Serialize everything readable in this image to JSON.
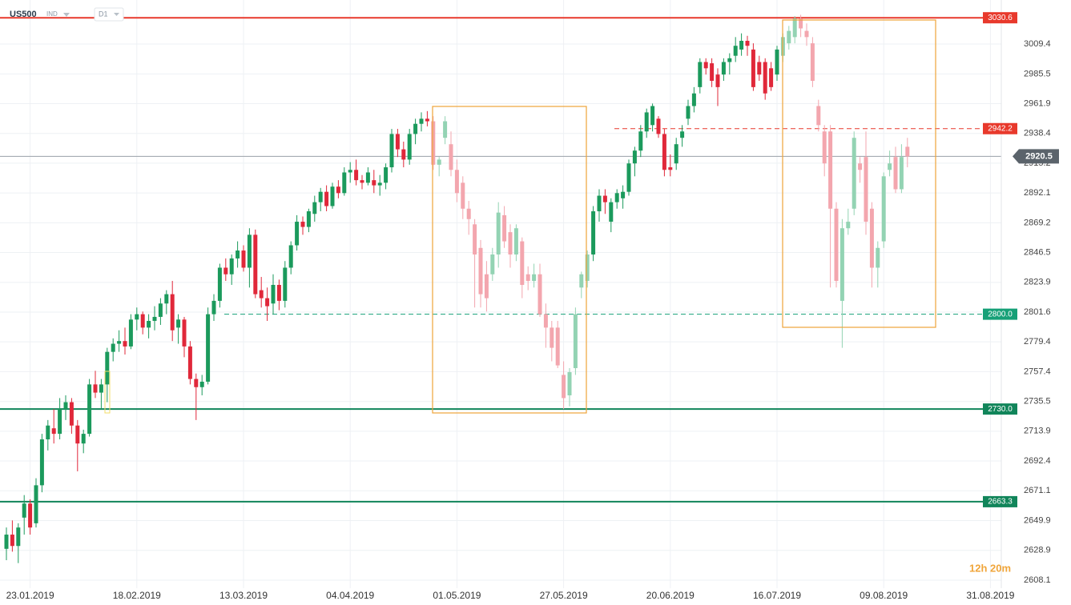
{
  "chart_data": {
    "type": "candlestick",
    "symbol": "US500",
    "market": "IND",
    "timeframe": "D1",
    "countdown": "12h 20m",
    "log_scale": true,
    "grid": true,
    "up_color": "#1b9a5c",
    "down_color": "#e0283a",
    "categories": [
      null,
      null,
      null,
      null,
      "23.01.2019",
      null,
      null,
      null,
      null,
      null,
      null,
      null,
      null,
      null,
      null,
      null,
      null,
      null,
      null,
      null,
      null,
      null,
      "18.02.2019",
      null,
      null,
      null,
      null,
      null,
      null,
      null,
      null,
      null,
      null,
      null,
      null,
      null,
      null,
      null,
      null,
      null,
      "13.03.2019",
      null,
      null,
      null,
      null,
      null,
      null,
      null,
      null,
      null,
      null,
      null,
      null,
      null,
      null,
      null,
      null,
      null,
      "04.04.2019",
      null,
      null,
      null,
      null,
      null,
      null,
      null,
      null,
      null,
      null,
      null,
      null,
      null,
      null,
      null,
      null,
      null,
      "01.05.2019",
      null,
      null,
      null,
      null,
      null,
      null,
      null,
      null,
      null,
      null,
      null,
      null,
      null,
      null,
      null,
      null,
      null,
      "27.05.2019",
      null,
      null,
      null,
      null,
      null,
      null,
      null,
      null,
      null,
      null,
      null,
      null,
      null,
      null,
      null,
      null,
      null,
      "20.06.2019",
      null,
      null,
      null,
      null,
      null,
      null,
      null,
      null,
      null,
      null,
      null,
      null,
      null,
      null,
      null,
      null,
      null,
      "16.07.2019",
      null,
      null,
      null,
      null,
      null,
      null,
      null,
      null,
      null,
      null,
      null,
      null,
      null,
      null,
      null,
      null,
      null,
      "09.08.2019",
      null,
      null,
      null,
      null,
      null,
      null,
      null,
      null,
      null,
      null,
      null,
      null,
      null,
      null,
      null,
      null,
      null,
      "31.08.2019",
      null,
      null
    ],
    "open": [
      2630,
      2640,
      2632,
      2652,
      2662,
      2648,
      2675,
      2708,
      2716,
      2712,
      2730,
      2735,
      2718,
      2705,
      2712,
      2748,
      2742,
      2748,
      2772,
      2778,
      2780,
      2776,
      2796,
      2800,
      2790,
      2795,
      2798,
      2808,
      2815,
      2790,
      2796,
      2776,
      2752,
      2746,
      2750,
      2800,
      2810,
      2835,
      2830,
      2842,
      2848,
      2835,
      2860,
      2818,
      2812,
      2808,
      2822,
      2810,
      2835,
      2852,
      2870,
      2866,
      2876,
      2885,
      2893,
      2882,
      2897,
      2892,
      2908,
      2910,
      2902,
      2900,
      2902,
      2898,
      2900,
      2912,
      2938,
      2926,
      2918,
      2938,
      2946,
      2950,
      2948,
      2914,
      2935,
      2930,
      2910,
      2900,
      2880,
      2868,
      2850,
      2830,
      2830,
      2845,
      2875,
      2862,
      2845,
      2855,
      2830,
      2825,
      2830,
      2800,
      2790,
      2790,
      2755,
      2740,
      2760,
      2820,
      2825,
      2845,
      2878,
      2890,
      2870,
      2885,
      2888,
      2893,
      2915,
      2925,
      2940,
      2945,
      2950,
      2938,
      2912,
      2915,
      2935,
      2950,
      2960,
      2975,
      2995,
      2994,
      2985,
      2985,
      2995,
      3000,
      3005,
      3012,
      3005,
      2995,
      2995,
      2990,
      2985,
      3000,
      3010,
      3015,
      3030,
      3020,
      3010,
      2960,
      2940,
      2940,
      2880,
      2810,
      2865,
      2880,
      2915,
      2920,
      2880,
      2835,
      2855,
      2910,
      2920,
      2895,
      2928,
      null,
      null,
      null,
      null,
      null,
      null,
      null,
      null,
      null,
      null,
      null,
      null,
      null,
      null,
      null,
      null
    ],
    "high": [
      2645,
      2650,
      2648,
      2668,
      2665,
      2680,
      2712,
      2722,
      2730,
      2738,
      2740,
      2738,
      2722,
      2715,
      2752,
      2758,
      2752,
      2775,
      2782,
      2788,
      2790,
      2800,
      2805,
      2802,
      2800,
      2806,
      2812,
      2818,
      2825,
      2800,
      2798,
      2780,
      2756,
      2755,
      2805,
      2815,
      2838,
      2842,
      2845,
      2855,
      2852,
      2865,
      2864,
      2828,
      2820,
      2830,
      2826,
      2840,
      2855,
      2875,
      2874,
      2880,
      2890,
      2896,
      2898,
      2900,
      2902,
      2912,
      2916,
      2918,
      2906,
      2912,
      2910,
      2906,
      2915,
      2942,
      2942,
      2932,
      2942,
      2950,
      2955,
      2956,
      2952,
      2920,
      2952,
      2940,
      2918,
      2905,
      2886,
      2872,
      2856,
      2840,
      2850,
      2885,
      2882,
      2868,
      2868,
      2858,
      2836,
      2838,
      2838,
      2808,
      2795,
      2795,
      2765,
      2760,
      2805,
      2832,
      2848,
      2882,
      2895,
      2895,
      2888,
      2895,
      2898,
      2918,
      2928,
      2945,
      2958,
      2962,
      2952,
      2942,
      2922,
      2935,
      2945,
      2965,
      2975,
      2998,
      2998,
      2998,
      2990,
      2998,
      3002,
      3015,
      3018,
      3016,
      3010,
      3000,
      2998,
      2995,
      3008,
      3018,
      3024,
      3032,
      3033,
      3026,
      3015,
      2965,
      2945,
      2945,
      2885,
      2872,
      2880,
      2940,
      2920,
      2940,
      2885,
      2855,
      2908,
      2925,
      2928,
      2930,
      2935,
      null,
      null,
      null,
      null,
      null,
      null,
      null,
      null,
      null,
      null,
      null,
      null,
      null,
      null,
      null,
      null
    ],
    "low": [
      2622,
      2628,
      2620,
      2640,
      2640,
      2645,
      2670,
      2700,
      2705,
      2708,
      2722,
      2712,
      2685,
      2698,
      2710,
      2738,
      2730,
      2735,
      2765,
      2772,
      2770,
      2774,
      2788,
      2785,
      2782,
      2788,
      2792,
      2800,
      2780,
      2778,
      2768,
      2748,
      2722,
      2740,
      2748,
      2795,
      2805,
      2825,
      2822,
      2835,
      2832,
      2820,
      2812,
      2805,
      2795,
      2800,
      2803,
      2805,
      2830,
      2848,
      2860,
      2862,
      2870,
      2878,
      2878,
      2880,
      2888,
      2890,
      2900,
      2898,
      2895,
      2898,
      2892,
      2890,
      2895,
      2908,
      2920,
      2912,
      2914,
      2930,
      2940,
      2944,
      2910,
      2905,
      2930,
      2905,
      2885,
      2872,
      2860,
      2805,
      2805,
      2802,
      2825,
      2835,
      2850,
      2835,
      2840,
      2812,
      2818,
      2820,
      2798,
      2775,
      2765,
      2760,
      2730,
      2732,
      2755,
      2812,
      2820,
      2840,
      2870,
      2876,
      2862,
      2880,
      2880,
      2890,
      2905,
      2920,
      2935,
      2940,
      2935,
      2905,
      2905,
      2910,
      2928,
      2945,
      2955,
      2970,
      2985,
      2975,
      2960,
      2980,
      2985,
      2995,
      3000,
      3000,
      2972,
      2980,
      2965,
      2972,
      2980,
      2995,
      3005,
      3010,
      3015,
      3008,
      2975,
      2940,
      2905,
      2820,
      2820,
      2775,
      2860,
      2875,
      2900,
      2860,
      2820,
      2820,
      2850,
      2905,
      2892,
      2892,
      2912,
      null,
      null,
      null,
      null,
      null,
      null,
      null,
      null,
      null,
      null,
      null,
      null,
      null,
      null,
      null,
      null
    ],
    "close": [
      2640,
      2632,
      2645,
      2662,
      2645,
      2675,
      2708,
      2718,
      2712,
      2730,
      2735,
      2718,
      2705,
      2712,
      2748,
      2742,
      2748,
      2772,
      2778,
      2780,
      2776,
      2796,
      2800,
      2790,
      2795,
      2798,
      2808,
      2815,
      2788,
      2796,
      2776,
      2752,
      2746,
      2750,
      2800,
      2810,
      2835,
      2830,
      2842,
      2848,
      2835,
      2860,
      2815,
      2812,
      2806,
      2822,
      2810,
      2835,
      2852,
      2870,
      2866,
      2878,
      2885,
      2893,
      2882,
      2897,
      2892,
      2908,
      2910,
      2902,
      2900,
      2908,
      2898,
      2900,
      2912,
      2938,
      2926,
      2918,
      2938,
      2946,
      2950,
      2948,
      2914,
      2918,
      2948,
      2910,
      2892,
      2880,
      2872,
      2845,
      2815,
      2812,
      2845,
      2877,
      2855,
      2845,
      2865,
      2822,
      2825,
      2830,
      2800,
      2790,
      2775,
      2762,
      2738,
      2757,
      2800,
      2830,
      2845,
      2878,
      2890,
      2885,
      2885,
      2892,
      2893,
      2915,
      2925,
      2940,
      2955,
      2960,
      2938,
      2910,
      2910,
      2930,
      2940,
      2960,
      2970,
      2995,
      2990,
      2980,
      2975,
      2995,
      2998,
      3008,
      3012,
      3008,
      2975,
      2985,
      2970,
      2975,
      3005,
      3015,
      3020,
      3030,
      3022,
      3015,
      2980,
      2945,
      2915,
      2880,
      2825,
      2865,
      2870,
      2935,
      2910,
      2870,
      2835,
      2850,
      2905,
      2915,
      2895,
      2920,
      2920.5,
      null,
      null,
      null,
      null,
      null,
      null,
      null,
      null,
      null,
      null,
      null,
      null,
      null,
      null,
      null,
      null
    ],
    "ylim": [
      2602.5,
      3045
    ],
    "yticks": [
      2608.1,
      2628.9,
      2649.9,
      2671.1,
      2692.4,
      2713.9,
      2735.5,
      2757.4,
      2779.4,
      2801.6,
      2823.9,
      2846.5,
      2869.2,
      2892.1,
      2915.2,
      2938.4,
      2961.9,
      2985.5,
      3009.4
    ],
    "price_lines": [
      {
        "value": 3030.6,
        "color": "#e8392c",
        "style": "solid"
      },
      {
        "value": 2942.2,
        "color": "#e8392c",
        "style": "dashed"
      },
      {
        "value": 2800,
        "label": "2800.0",
        "color": "#16a077",
        "style": "dashed"
      },
      {
        "value": 2730,
        "label": "2730.0",
        "color": "#11855a",
        "style": "solid"
      },
      {
        "value": 2663.3,
        "color": "#11855a",
        "style": "solid"
      }
    ],
    "last_price": 2920.5
  }
}
